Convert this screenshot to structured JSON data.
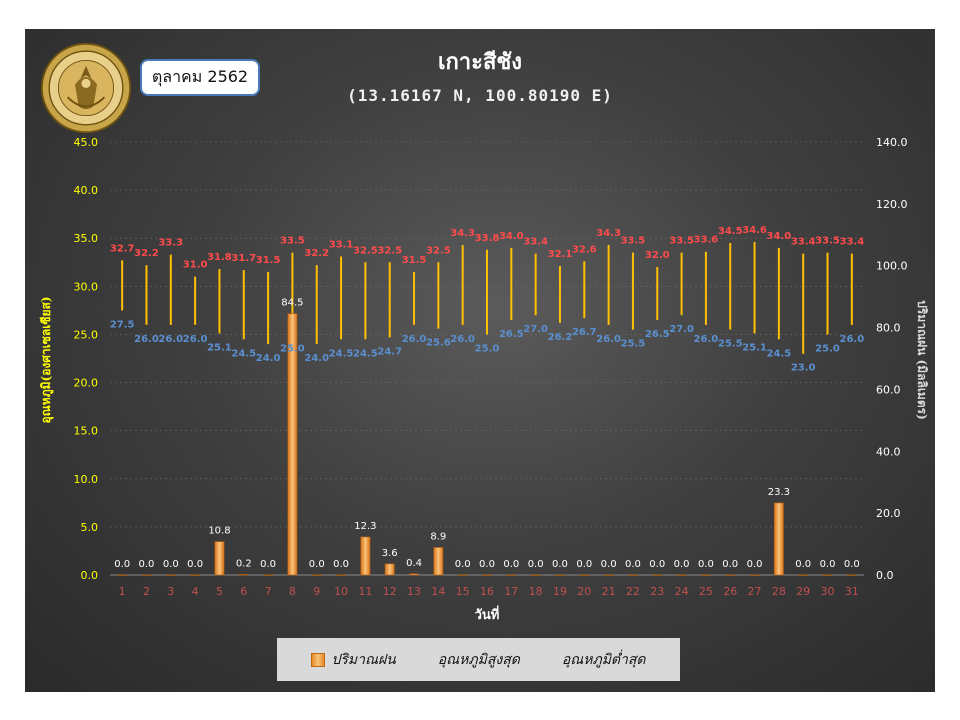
{
  "header": {
    "month": "ตุลาคม 2562",
    "title": "เกาะสีชัง",
    "subtitle": "(13.16167 N, 100.80190 E)",
    "seal_text": "กรมอุตุนิยมวิทยา METEOROLOGICAL DEPARTMENT"
  },
  "colors": {
    "rain_bar": "#f4a044",
    "range_line": "#ffc000",
    "max_label": "#ff4b4b",
    "min_label": "#5a8fd0",
    "rain_label": "#ffffff",
    "left_axis": "#ffff00",
    "right_axis": "#ffffff",
    "x_tick": "#c0504d"
  },
  "chart_data": {
    "type": "bar",
    "title": "เกาะสีชัง",
    "xlabel": "วันที่",
    "ylabel_left": "อุณหภูมิ(องศาเซลเซียส)",
    "ylabel_right": "ปริมาณฝน (มิลลิเมตร)",
    "ylim_left": [
      0,
      45
    ],
    "ylim_right": [
      0,
      140
    ],
    "left_ticks": [
      "0.0",
      "5.0",
      "10.0",
      "15.0",
      "20.0",
      "25.0",
      "30.0",
      "35.0",
      "40.0",
      "45.0"
    ],
    "right_ticks": [
      "0.0",
      "20.0",
      "40.0",
      "60.0",
      "80.0",
      "100.0",
      "120.0",
      "140.0"
    ],
    "categories": [
      "1",
      "2",
      "3",
      "4",
      "5",
      "6",
      "7",
      "8",
      "9",
      "10",
      "11",
      "12",
      "13",
      "14",
      "15",
      "16",
      "17",
      "18",
      "19",
      "20",
      "21",
      "22",
      "23",
      "24",
      "25",
      "26",
      "27",
      "28",
      "29",
      "30",
      "31"
    ],
    "series": [
      {
        "name": "ปริมาณฝน",
        "axis": "right",
        "values": [
          0.0,
          0.0,
          0.0,
          0.0,
          10.8,
          0.2,
          0.0,
          84.5,
          0.0,
          0.0,
          12.3,
          3.6,
          0.4,
          8.9,
          0.0,
          0.0,
          0.0,
          0.0,
          0.0,
          0.0,
          0.0,
          0.0,
          0.0,
          0.0,
          0.0,
          0.0,
          0.0,
          23.3,
          0.0,
          0.0,
          0.0
        ],
        "labels": [
          "0.0",
          "0.0",
          "0.0",
          "0.0",
          "10.8",
          "0.2",
          "0.0",
          "84.5",
          "0.0",
          "0.0",
          "12.3",
          "3.6",
          "0.4",
          "8.9",
          "0.0",
          "0.0",
          "0.0",
          "0.0",
          "0.0",
          "0.0",
          "0.0",
          "0.0",
          "0.0",
          "0.0",
          "0.0",
          "0.0",
          "0.0",
          "23.3",
          "0.0",
          "0.0",
          "0.0"
        ]
      },
      {
        "name": "อุณหภูมิสูงสุด",
        "axis": "left",
        "values": [
          32.7,
          32.2,
          33.3,
          31.0,
          31.8,
          31.7,
          31.5,
          33.5,
          32.2,
          33.1,
          32.5,
          32.5,
          31.5,
          32.5,
          34.3,
          33.8,
          34.0,
          33.4,
          32.1,
          32.6,
          34.3,
          33.5,
          32.0,
          33.5,
          33.6,
          34.5,
          34.6,
          34.0,
          33.4,
          33.5,
          33.4
        ],
        "labels": [
          "32.7",
          "32.2",
          "33.3",
          "31.0",
          "31.8",
          "31.7",
          "31.5",
          "33.5",
          "32.2",
          "33.1",
          "32.5",
          "32.5",
          "31.5",
          "32.5",
          "34.3",
          "33.8",
          "34.0",
          "33.4",
          "32.1",
          "32.6",
          "34.3",
          "33.5",
          "32.0",
          "33.5",
          "33.6",
          "34.5",
          "34.6",
          "34.0",
          "33.4",
          "33.5",
          "33.4"
        ]
      },
      {
        "name": "อุณหภูมิต่ำสุด",
        "axis": "left",
        "values": [
          27.5,
          26.0,
          26.0,
          26.0,
          25.1,
          24.5,
          24.0,
          25.0,
          24.0,
          24.5,
          24.5,
          24.7,
          26.0,
          25.6,
          26.0,
          25.0,
          26.5,
          27.0,
          26.2,
          26.7,
          26.0,
          25.5,
          26.5,
          27.0,
          26.0,
          25.5,
          25.1,
          24.5,
          23.0,
          25.0,
          26.0
        ],
        "labels": [
          "27.5",
          "26.0",
          "26.0",
          "26.0",
          "25.1",
          "24.5",
          "24.0",
          "25.0",
          "24.0",
          "24.5",
          "24.5",
          "24.7",
          "26.0",
          "25.6",
          "26.0",
          "25.0",
          "26.5",
          "27.0",
          "26.2",
          "26.7",
          "26.0",
          "25.5",
          "26.5",
          "27.0",
          "26.0",
          "25.5",
          "25.1",
          "24.5",
          "23.0",
          "25.0",
          "26.0"
        ]
      }
    ],
    "legend": [
      "ปริมาณฝน",
      "อุณหภูมิสูงสุด",
      "อุณหภูมิต่ำสุด"
    ],
    "legend_position": "bottom",
    "grid": true
  }
}
